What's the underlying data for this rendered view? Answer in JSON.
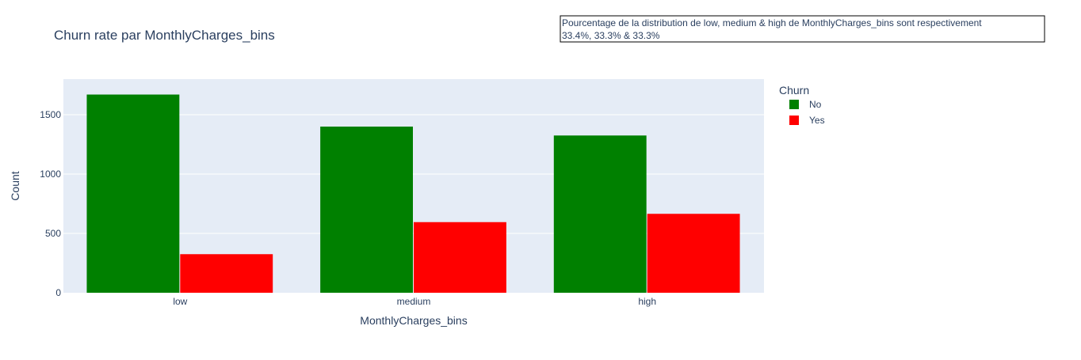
{
  "chart_data": {
    "type": "bar",
    "title": "Churn rate par MonthlyCharges_bins",
    "xlabel": "MonthlyCharges_bins",
    "ylabel": "Count",
    "categories": [
      "low",
      "medium",
      "high"
    ],
    "series": [
      {
        "name": "No",
        "color": "#008000",
        "values": [
          1670,
          1400,
          1325
        ]
      },
      {
        "name": "Yes",
        "color": "#ff0000",
        "values": [
          325,
          595,
          665
        ]
      }
    ],
    "ylim": [
      0,
      1800
    ],
    "yticks": [
      0,
      500,
      1000,
      1500
    ],
    "ytick_labels": [
      "0",
      "500",
      "1000",
      "1500"
    ],
    "grid": true,
    "legend": {
      "title": "Churn",
      "placement": "top-right-outside"
    },
    "annotation": {
      "lines": [
        "Pourcentage de la distribution de low, medium & high de MonthlyCharges_bins sont respectivement",
        "33.4%, 33.3% & 33.3%"
      ]
    },
    "plot_background": "#e5ecf6"
  }
}
